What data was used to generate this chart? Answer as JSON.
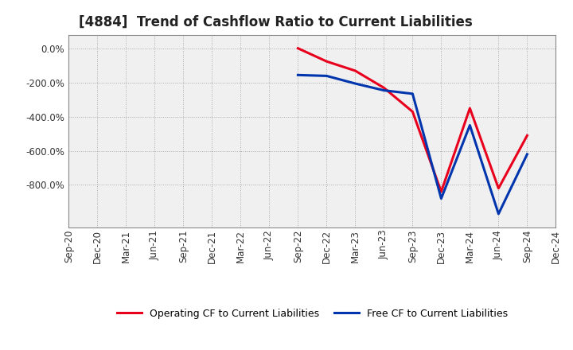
{
  "title": "[4884]  Trend of Cashflow Ratio to Current Liabilities",
  "x_labels": [
    "Sep-20",
    "Dec-20",
    "Mar-21",
    "Jun-21",
    "Sep-21",
    "Dec-21",
    "Mar-22",
    "Jun-22",
    "Sep-22",
    "Dec-22",
    "Mar-23",
    "Jun-23",
    "Sep-23",
    "Dec-23",
    "Mar-24",
    "Jun-24",
    "Sep-24",
    "Dec-24"
  ],
  "operating_cf": [
    null,
    null,
    null,
    null,
    null,
    null,
    null,
    null,
    2.0,
    -75.0,
    -130.0,
    -230.0,
    -370.0,
    -840.0,
    -350.0,
    -820.0,
    -510.0,
    null
  ],
  "free_cf": [
    null,
    null,
    null,
    null,
    null,
    null,
    null,
    null,
    -155.0,
    -160.0,
    -205.0,
    -245.0,
    -265.0,
    -880.0,
    -450.0,
    -970.0,
    -620.0,
    null
  ],
  "operating_cf_color": "#e8001c",
  "free_cf_color": "#0035ad",
  "background_color": "#ffffff",
  "plot_bg_color": "#f0f0f0",
  "grid_color": "#aaaaaa",
  "ylim": [
    -1050,
    80
  ],
  "yticks": [
    0,
    -200,
    -400,
    -600,
    -800
  ],
  "legend_labels": [
    "Operating CF to Current Liabilities",
    "Free CF to Current Liabilities"
  ],
  "line_width": 2.2,
  "title_fontsize": 12,
  "tick_fontsize": 8.5,
  "legend_fontsize": 9
}
